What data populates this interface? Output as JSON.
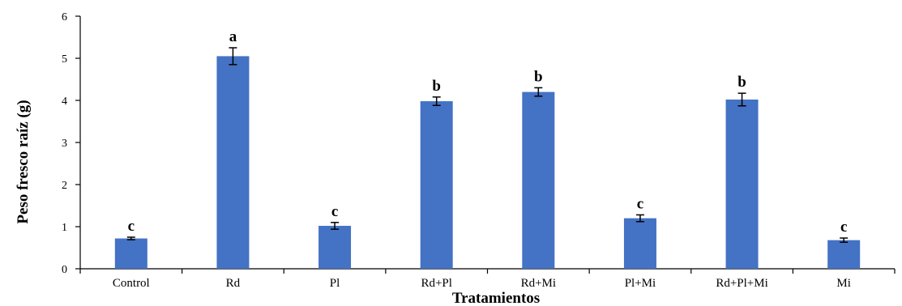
{
  "chart_data": {
    "type": "bar",
    "title": "",
    "xlabel": "Tratamientos",
    "ylabel": "Peso fresco raíz (g)",
    "ylim": [
      0,
      6
    ],
    "yticks": [
      "0",
      "1",
      "2",
      "3",
      "4",
      "5",
      "6"
    ],
    "grid": false,
    "categories": [
      "Control",
      "Rd",
      "Pl",
      "Rd+Pl",
      "Rd+Mi",
      "Pl+Mi",
      "Rd+Pl+Mi",
      "Mi"
    ],
    "values": [
      0.72,
      5.05,
      1.02,
      3.98,
      4.2,
      1.2,
      4.02,
      0.68
    ],
    "errors": [
      0.03,
      0.2,
      0.08,
      0.1,
      0.1,
      0.08,
      0.15,
      0.05
    ],
    "significance_letters": [
      "c",
      "a",
      "c",
      "b",
      "b",
      "c",
      "b",
      "c"
    ],
    "bar_color": "#4472C4"
  }
}
